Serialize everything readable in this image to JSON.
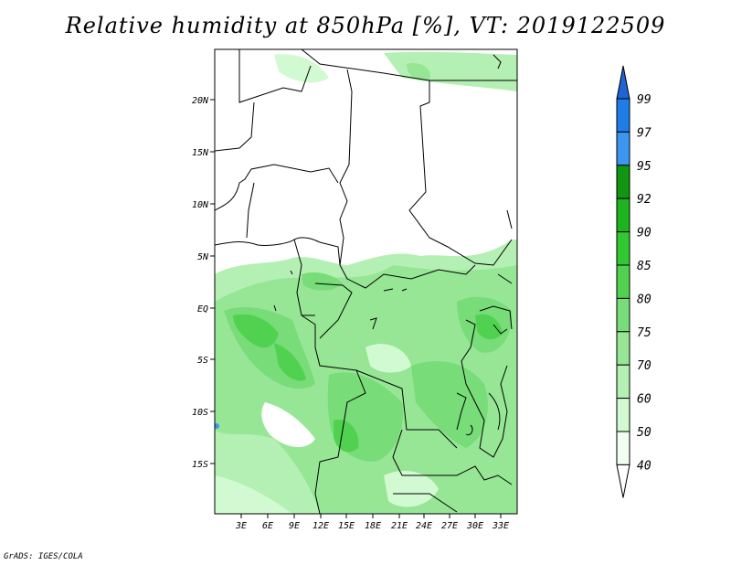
{
  "title": "Relative humidity at 850hPa [%], VT: 2019122509",
  "footer": "GrADS: IGES/COLA",
  "map": {
    "lon_range": [
      0,
      34
    ],
    "lat_range": [
      -20,
      24
    ],
    "lon_ticks": [
      "3E",
      "6E",
      "9E",
      "12E",
      "15E",
      "18E",
      "21E",
      "24E",
      "27E",
      "30E",
      "33E"
    ],
    "lat_ticks": [
      "20N",
      "15N",
      "10N",
      "5N",
      "EQ",
      "5S",
      "10S",
      "15S"
    ]
  },
  "colorbar": {
    "levels": [
      "99",
      "97",
      "95",
      "92",
      "90",
      "85",
      "80",
      "75",
      "70",
      "60",
      "50",
      "40"
    ],
    "colors": [
      "#1e64d2",
      "#1e7de6",
      "#3c96f0",
      "#109610",
      "#1eb41e",
      "#32c832",
      "#50d250",
      "#78dc78",
      "#96e696",
      "#b4f0b4",
      "#d2fad2",
      "#f0fff0"
    ]
  }
}
